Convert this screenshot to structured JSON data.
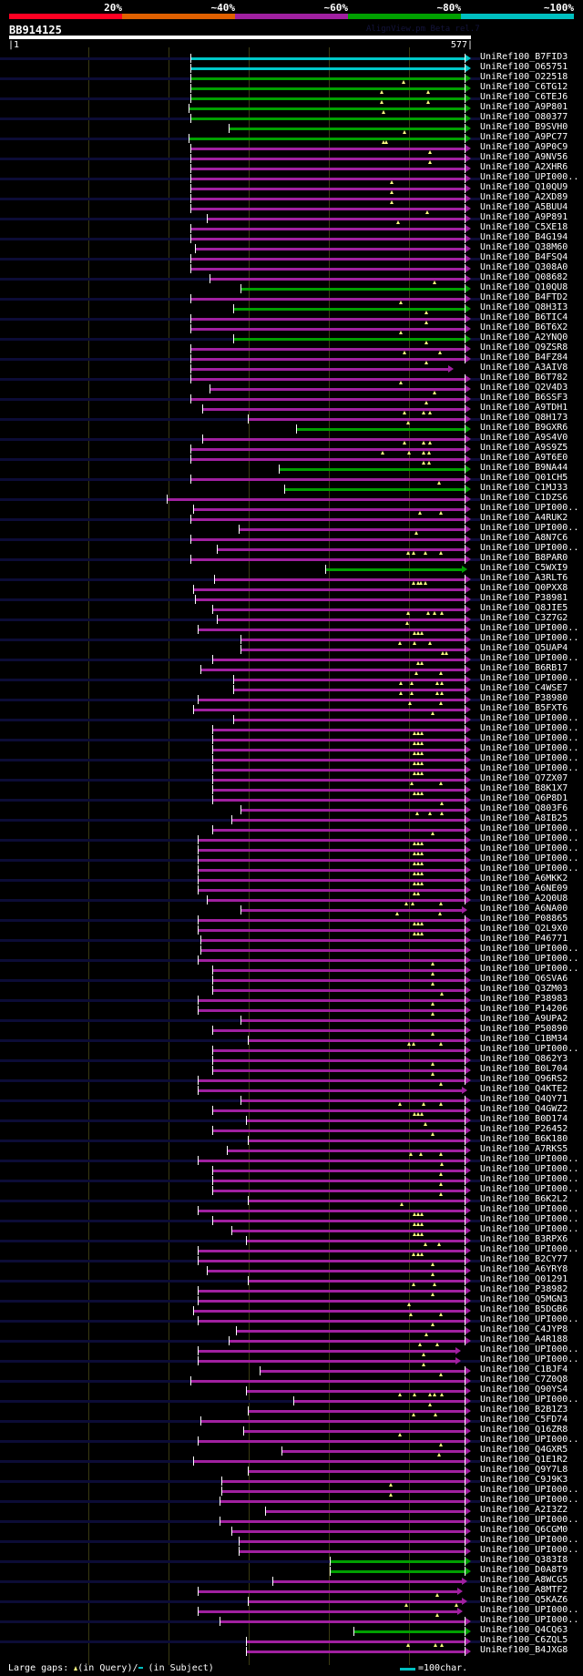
{
  "header": {
    "percent_labels": [
      "20%",
      "~40%",
      "~60%",
      "~80%",
      "~100%"
    ],
    "percent_colors": [
      "#ff0022",
      "#e06000",
      "#a020a0",
      "#00a000",
      "#00c0c0"
    ],
    "query_name": "BB914125",
    "watermark": "AlignView.pm Beta rel.7",
    "axis_start": "|1",
    "axis_end": "577|"
  },
  "query_length": 577,
  "colors": {
    "c": "#00c8c8",
    "g": "#00a000",
    "m": "#a020a0",
    "gap": "#ffff80"
  },
  "rows": [
    [
      "UniRef100_B7FID3",
      227,
      577,
      "c",
      []
    ],
    [
      "UniRef100_O65751",
      227,
      577,
      "c",
      []
    ],
    [
      "UniRef100_O22518",
      227,
      577,
      "g",
      [
        493
      ]
    ],
    [
      "UniRef100_C6TG12",
      227,
      577,
      "g",
      [
        466,
        524
      ]
    ],
    [
      "UniRef100_C6TEJ6",
      227,
      577,
      "g",
      [
        466,
        524
      ]
    ],
    [
      "UniRef100_A9P801",
      225,
      577,
      "g",
      [
        468
      ]
    ],
    [
      "UniRef100_O80377",
      227,
      577,
      "g",
      []
    ],
    [
      "UniRef100_B9SVH0",
      275,
      577,
      "g",
      [
        494
      ]
    ],
    [
      "UniRef100_A9PC77",
      225,
      577,
      "g",
      [
        468,
        471
      ]
    ],
    [
      "UniRef100_A9P0C9",
      227,
      577,
      "m",
      [
        526
      ]
    ],
    [
      "UniRef100_A9NV56",
      227,
      577,
      "m",
      [
        526
      ]
    ],
    [
      "UniRef100_A2XHR6",
      227,
      577,
      "m",
      []
    ],
    [
      "UniRef100_UPI000..",
      227,
      577,
      "m",
      [
        478
      ]
    ],
    [
      "UniRef100_Q10QU9",
      227,
      577,
      "m",
      [
        478
      ]
    ],
    [
      "UniRef100_A2XD89",
      227,
      577,
      "m",
      [
        478
      ]
    ],
    [
      "UniRef100_A5BUU4",
      227,
      577,
      "m",
      [
        522
      ]
    ],
    [
      "UniRef100_A9P891",
      248,
      577,
      "m",
      [
        486
      ]
    ],
    [
      "UniRef100_C5XE18",
      227,
      577,
      "m",
      []
    ],
    [
      "UniRef100_B4G194",
      227,
      577,
      "m",
      []
    ],
    [
      "UniRef100_Q38M60",
      233,
      577,
      "m",
      []
    ],
    [
      "UniRef100_B4FSQ4",
      227,
      577,
      "m",
      []
    ],
    [
      "UniRef100_Q308A0",
      227,
      577,
      "m",
      []
    ],
    [
      "UniRef100_Q08682",
      251,
      577,
      "m",
      [
        532
      ]
    ],
    [
      "UniRef100_Q10QU8",
      290,
      577,
      "g",
      []
    ],
    [
      "UniRef100_B4FTD2",
      227,
      577,
      "m",
      [
        490
      ]
    ],
    [
      "UniRef100_Q8H3I3",
      280,
      577,
      "g",
      [
        521
      ]
    ],
    [
      "UniRef100_B6TIC4",
      227,
      577,
      "m",
      [
        521
      ]
    ],
    [
      "UniRef100_B6T6X2",
      227,
      577,
      "m",
      [
        490
      ]
    ],
    [
      "UniRef100_A2YNQ0",
      280,
      577,
      "g",
      [
        521
      ]
    ],
    [
      "UniRef100_Q9ZSR8",
      227,
      577,
      "m",
      [
        494,
        538
      ]
    ],
    [
      "UniRef100_B4FZ84",
      227,
      577,
      "m",
      [
        521
      ]
    ],
    [
      "UniRef100_A3AIV8",
      227,
      555,
      "m",
      []
    ],
    [
      "UniRef100_B6T782",
      227,
      577,
      "m",
      [
        490
      ]
    ],
    [
      "UniRef100_Q2V4D3",
      251,
      577,
      "m",
      [
        532
      ]
    ],
    [
      "UniRef100_B6SSF3",
      227,
      577,
      "m",
      [
        521
      ]
    ],
    [
      "UniRef100_A9TDH1",
      242,
      577,
      "m",
      [
        494,
        518,
        526
      ]
    ],
    [
      "UniRef100_Q8H173",
      299,
      577,
      "m",
      [
        499
      ]
    ],
    [
      "UniRef100_B9GXR6",
      359,
      577,
      "g",
      []
    ],
    [
      "UniRef100_A9S4V0",
      242,
      577,
      "m",
      [
        494,
        518,
        526
      ]
    ],
    [
      "UniRef100_A9S9Z5",
      227,
      577,
      "m",
      [
        467,
        500,
        518,
        525
      ]
    ],
    [
      "UniRef100_A9T6E0",
      227,
      577,
      "m",
      [
        518,
        525
      ]
    ],
    [
      "UniRef100_B9NA44",
      337,
      577,
      "g",
      []
    ],
    [
      "UniRef100_Q01CH5",
      227,
      577,
      "m",
      [
        537
      ]
    ],
    [
      "UniRef100_C1MJ33",
      344,
      577,
      "g",
      []
    ],
    [
      "UniRef100_C1DZS6",
      198,
      577,
      "m",
      []
    ],
    [
      "UniRef100_UPI000..",
      231,
      577,
      "m",
      [
        513,
        539
      ]
    ],
    [
      "UniRef100_A4RUK2",
      227,
      577,
      "m",
      []
    ],
    [
      "UniRef100_UPI000..",
      287,
      577,
      "m",
      [
        509
      ]
    ],
    [
      "UniRef100_A8N7C6",
      227,
      577,
      "m",
      []
    ],
    [
      "UniRef100_UPI000..",
      260,
      577,
      "m",
      [
        499,
        505,
        520,
        539
      ]
    ],
    [
      "UniRef100_B8PAR0",
      227,
      577,
      "m",
      []
    ],
    [
      "UniRef100_C5WXI9",
      395,
      572,
      "g",
      []
    ],
    [
      "UniRef100_A3RLT6",
      257,
      577,
      "m",
      [
        505,
        511,
        514,
        520
      ]
    ],
    [
      "UniRef100_Q0PXX8",
      231,
      577,
      "m",
      []
    ],
    [
      "UniRef100_P38981",
      233,
      577,
      "m",
      []
    ],
    [
      "UniRef100_Q8JIE5",
      254,
      577,
      "m",
      [
        499,
        524,
        532,
        541
      ]
    ],
    [
      "UniRef100_C3Z7G2",
      260,
      577,
      "m",
      [
        498
      ]
    ],
    [
      "UniRef100_UPI000..",
      236,
      577,
      "m",
      [
        507,
        511,
        516
      ]
    ],
    [
      "UniRef100_UPI000..",
      290,
      577,
      "m",
      [
        488,
        507,
        526
      ]
    ],
    [
      "UniRef100_Q5UAP4",
      290,
      577,
      "m",
      [
        542,
        546
      ]
    ],
    [
      "UniRef100_UPI000..",
      254,
      577,
      "m",
      [
        511,
        516
      ]
    ],
    [
      "UniRef100_B6RB17",
      240,
      577,
      "m",
      [
        509,
        539
      ]
    ],
    [
      "UniRef100_UPI000..",
      280,
      577,
      "m",
      [
        490,
        503,
        535,
        541
      ]
    ],
    [
      "UniRef100_C4WSE7",
      280,
      577,
      "m",
      [
        490,
        503,
        535,
        541
      ]
    ],
    [
      "UniRef100_P38980",
      236,
      577,
      "m",
      [
        501,
        539
      ]
    ],
    [
      "UniRef100_B5FXT6",
      231,
      577,
      "m",
      [
        529
      ]
    ],
    [
      "UniRef100_UPI000..",
      280,
      577,
      "m",
      []
    ],
    [
      "UniRef100_UPI000..",
      254,
      577,
      "m",
      [
        507,
        511,
        516
      ]
    ],
    [
      "UniRef100_UPI000..",
      254,
      577,
      "m",
      [
        507,
        511,
        516
      ]
    ],
    [
      "UniRef100_UPI000..",
      254,
      577,
      "m",
      [
        507,
        511,
        516
      ]
    ],
    [
      "UniRef100_UPI000..",
      254,
      577,
      "m",
      [
        507,
        511,
        516
      ]
    ],
    [
      "UniRef100_UPI000..",
      254,
      577,
      "m",
      [
        507,
        511,
        516
      ]
    ],
    [
      "UniRef100_Q7ZX07",
      254,
      577,
      "m",
      [
        503,
        539
      ]
    ],
    [
      "UniRef100_B8K1X7",
      254,
      577,
      "m",
      [
        507,
        511,
        516
      ]
    ],
    [
      "UniRef100_Q6P8D1",
      254,
      577,
      "m",
      [
        541
      ]
    ],
    [
      "UniRef100_Q803F6",
      290,
      577,
      "m",
      [
        510,
        526,
        541
      ]
    ],
    [
      "UniRef100_A8IB25",
      278,
      577,
      "m",
      []
    ],
    [
      "UniRef100_UPI000..",
      254,
      577,
      "m",
      [
        529
      ]
    ],
    [
      "UniRef100_UPI000..",
      236,
      577,
      "m",
      [
        507,
        511,
        516
      ]
    ],
    [
      "UniRef100_UPI000..",
      236,
      577,
      "m",
      [
        507,
        511,
        516
      ]
    ],
    [
      "UniRef100_UPI000..",
      236,
      577,
      "m",
      [
        507,
        511,
        516
      ]
    ],
    [
      "UniRef100_UPI000..",
      236,
      577,
      "m",
      [
        507,
        511,
        516
      ]
    ],
    [
      "UniRef100_A6MKK2",
      236,
      577,
      "m",
      [
        507,
        511,
        516
      ]
    ],
    [
      "UniRef100_A6NE09",
      236,
      577,
      "m",
      [
        507,
        511
      ]
    ],
    [
      "UniRef100_A2Q0U8",
      248,
      577,
      "m",
      [
        496,
        504,
        539
      ]
    ],
    [
      "UniRef100_A6NA00",
      290,
      572,
      "m",
      [
        485,
        538
      ]
    ],
    [
      "UniRef100_P08865",
      236,
      577,
      "m",
      [
        507,
        511,
        516
      ]
    ],
    [
      "UniRef100_Q2L9X0",
      236,
      577,
      "m",
      [
        507,
        511,
        516
      ]
    ],
    [
      "UniRef100_P46771",
      240,
      577,
      "m",
      []
    ],
    [
      "UniRef100_UPI000..",
      240,
      577,
      "m",
      []
    ],
    [
      "UniRef100_UPI000..",
      236,
      577,
      "m",
      [
        529
      ]
    ],
    [
      "UniRef100_UPI000..",
      254,
      577,
      "m",
      [
        529
      ]
    ],
    [
      "UniRef100_Q6SVA6",
      254,
      577,
      "m",
      [
        529
      ]
    ],
    [
      "UniRef100_Q3ZM03",
      254,
      577,
      "m",
      [
        541
      ]
    ],
    [
      "UniRef100_P38983",
      236,
      577,
      "m",
      [
        529
      ]
    ],
    [
      "UniRef100_P14206",
      236,
      577,
      "m",
      [
        529
      ]
    ],
    [
      "UniRef100_A9UPA2",
      290,
      577,
      "m",
      []
    ],
    [
      "UniRef100_P50890",
      254,
      577,
      "m",
      [
        529
      ]
    ],
    [
      "UniRef100_C1BM34",
      299,
      577,
      "m",
      [
        500,
        505,
        539
      ]
    ],
    [
      "UniRef100_UPI000..",
      254,
      577,
      "m",
      []
    ],
    [
      "UniRef100_Q862Y3",
      254,
      577,
      "m",
      [
        529
      ]
    ],
    [
      "UniRef100_B0L704",
      254,
      577,
      "m",
      [
        529
      ]
    ],
    [
      "UniRef100_Q96RS2",
      236,
      577,
      "m",
      [
        539
      ]
    ],
    [
      "UniRef100_Q4KTE2",
      236,
      572,
      "m",
      []
    ],
    [
      "UniRef100_Q4QY71",
      290,
      577,
      "m",
      [
        488,
        518,
        539
      ]
    ],
    [
      "UniRef100_Q4GWZ2",
      254,
      577,
      "m",
      [
        507,
        511,
        516
      ]
    ],
    [
      "UniRef100_B0D174",
      296,
      577,
      "m",
      [
        520
      ]
    ],
    [
      "UniRef100_P26452",
      254,
      577,
      "m",
      [
        529
      ]
    ],
    [
      "UniRef100_B6K180",
      299,
      577,
      "m",
      []
    ],
    [
      "UniRef100_A7RKS5",
      272,
      577,
      "m",
      [
        502,
        515,
        539
      ]
    ],
    [
      "UniRef100_UPI000..",
      236,
      577,
      "m",
      [
        541
      ]
    ],
    [
      "UniRef100_UPI000..",
      254,
      577,
      "m",
      [
        539
      ]
    ],
    [
      "UniRef100_UPI000..",
      254,
      577,
      "m",
      [
        539
      ]
    ],
    [
      "UniRef100_UPI000..",
      254,
      577,
      "m",
      [
        539
      ]
    ],
    [
      "UniRef100_B6K2L2",
      299,
      577,
      "m",
      [
        491
      ]
    ],
    [
      "UniRef100_UPI000..",
      236,
      577,
      "m",
      [
        507,
        511,
        516
      ]
    ],
    [
      "UniRef100_UPI000..",
      254,
      577,
      "m",
      [
        507,
        511,
        516
      ]
    ],
    [
      "UniRef100_UPI000..",
      278,
      577,
      "m",
      [
        507,
        511,
        516
      ]
    ],
    [
      "UniRef100_B3RPX6",
      296,
      577,
      "m",
      [
        520,
        537
      ]
    ],
    [
      "UniRef100_UPI000..",
      236,
      577,
      "m",
      [
        505,
        511,
        516
      ]
    ],
    [
      "UniRef100_B2CY77",
      236,
      577,
      "m",
      [
        529
      ]
    ],
    [
      "UniRef100_A6YRY8",
      248,
      577,
      "m",
      [
        529
      ]
    ],
    [
      "UniRef100_Q01291",
      299,
      577,
      "m",
      [
        505,
        532
      ]
    ],
    [
      "UniRef100_P38982",
      236,
      577,
      "m",
      [
        529
      ]
    ],
    [
      "UniRef100_Q5MGN3",
      236,
      577,
      "m",
      [
        500
      ]
    ],
    [
      "UniRef100_B5DGB6",
      231,
      577,
      "m",
      [
        502,
        539
      ]
    ],
    [
      "UniRef100_UPI000..",
      236,
      577,
      "m",
      [
        529
      ]
    ],
    [
      "UniRef100_C4JYP8",
      284,
      577,
      "m",
      [
        521
      ]
    ],
    [
      "UniRef100_A4R188",
      275,
      577,
      "m",
      [
        513,
        535
      ]
    ],
    [
      "UniRef100_UPI000..",
      236,
      565,
      "m",
      [
        518
      ]
    ],
    [
      "UniRef100_UPI000..",
      236,
      565,
      "m",
      [
        518
      ]
    ],
    [
      "UniRef100_C1BJF4",
      313,
      577,
      "m",
      [
        539
      ]
    ],
    [
      "UniRef100_C7Z0Q8",
      227,
      577,
      "m",
      []
    ],
    [
      "UniRef100_Q90YS4",
      296,
      577,
      "m",
      [
        488,
        507,
        526,
        532,
        541
      ]
    ],
    [
      "UniRef100_UPI000..",
      355,
      577,
      "m",
      [
        526
      ]
    ],
    [
      "UniRef100_B2B1Z3",
      299,
      577,
      "m",
      [
        505,
        533
      ]
    ],
    [
      "UniRef100_C5FD74",
      240,
      577,
      "m",
      []
    ],
    [
      "UniRef100_Q16ZR8",
      293,
      577,
      "m",
      [
        488
      ]
    ],
    [
      "UniRef100_UPI000..",
      236,
      577,
      "m",
      [
        539
      ]
    ],
    [
      "UniRef100_Q4GXR5",
      341,
      577,
      "m",
      [
        537
      ]
    ],
    [
      "UniRef100_Q1E1R2",
      231,
      577,
      "m",
      []
    ],
    [
      "UniRef100_Q9Y7L8",
      299,
      577,
      "m",
      []
    ],
    [
      "UniRef100_C9J9K3",
      266,
      577,
      "m",
      [
        477
      ]
    ],
    [
      "UniRef100_UPI000..",
      266,
      577,
      "m",
      [
        477
      ]
    ],
    [
      "UniRef100_UPI000..",
      264,
      577,
      "m",
      []
    ],
    [
      "UniRef100_A2I3Z2",
      320,
      577,
      "m",
      []
    ],
    [
      "UniRef100_UPI000..",
      264,
      577,
      "m",
      []
    ],
    [
      "UniRef100_Q6CGM0",
      278,
      577,
      "m",
      []
    ],
    [
      "UniRef100_UPI000..",
      287,
      577,
      "m",
      []
    ],
    [
      "UniRef100_UPI000..",
      287,
      577,
      "m",
      []
    ],
    [
      "UniRef100_Q383I8",
      401,
      577,
      "g",
      []
    ],
    [
      "UniRef100_D0A8T9",
      401,
      577,
      "g",
      []
    ],
    [
      "UniRef100_A8WCG5",
      329,
      572,
      "m",
      []
    ],
    [
      "UniRef100_A8MTF2",
      236,
      567,
      "m",
      [
        535
      ]
    ],
    [
      "UniRef100_Q5KAZ6",
      299,
      572,
      "m",
      [
        496,
        559
      ]
    ],
    [
      "UniRef100_UPI000..",
      236,
      567,
      "m",
      [
        535
      ]
    ],
    [
      "UniRef100_UPI000..",
      264,
      577,
      "m",
      []
    ],
    [
      "UniRef100_Q4CQ63",
      430,
      577,
      "g",
      []
    ],
    [
      "UniRef100_C6ZQL5",
      296,
      577,
      "m",
      [
        499,
        533,
        541
      ]
    ],
    [
      "UniRef100_B4JXG8",
      296,
      577,
      "m",
      []
    ]
  ],
  "footer": {
    "prefix": "Large gaps:",
    "query_part": "(in Query)/",
    "subject_part": "(in Subject)",
    "scale_label": "=100char."
  }
}
